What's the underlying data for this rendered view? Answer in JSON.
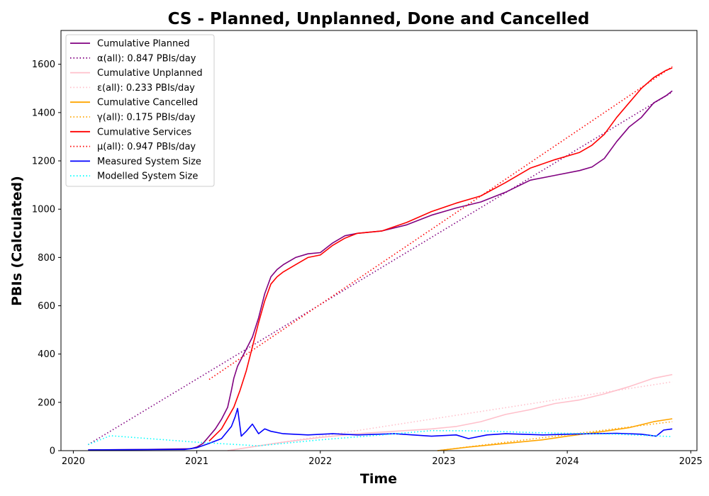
{
  "chart_data": {
    "type": "line",
    "title": "CS - Planned, Unplanned, Done  and Cancelled",
    "xlabel": "Time",
    "ylabel": "PBIs (Calculated)",
    "xlim": [
      2019.9,
      2025.05
    ],
    "ylim": [
      0,
      1740
    ],
    "x_ticks": [
      2020,
      2021,
      2022,
      2023,
      2024,
      2025
    ],
    "x_tick_labels": [
      "2020",
      "2021",
      "2022",
      "2023",
      "2024",
      "2025"
    ],
    "y_ticks": [
      0,
      200,
      400,
      600,
      800,
      1000,
      1200,
      1400,
      1600
    ],
    "y_tick_labels": [
      "0",
      "200",
      "400",
      "600",
      "800",
      "1000",
      "1200",
      "1400",
      "1600"
    ],
    "grid": false,
    "legend_position": "top-left",
    "series": [
      {
        "name": "Cumulative Planned",
        "color": "#800080",
        "style": "solid",
        "x": [
          2020.12,
          2020.6,
          2020.95,
          2021.0,
          2021.05,
          2021.1,
          2021.15,
          2021.2,
          2021.25,
          2021.28,
          2021.3,
          2021.33,
          2021.36,
          2021.4,
          2021.45,
          2021.5,
          2021.55,
          2021.6,
          2021.65,
          2021.7,
          2021.8,
          2021.9,
          2022.0,
          2022.1,
          2022.2,
          2022.3,
          2022.5,
          2022.7,
          2022.9,
          2023.1,
          2023.3,
          2023.5,
          2023.7,
          2023.9,
          2024.1,
          2024.2,
          2024.3,
          2024.4,
          2024.5,
          2024.6,
          2024.7,
          2024.8,
          2024.85
        ],
        "values": [
          3,
          5,
          8,
          15,
          30,
          60,
          90,
          130,
          180,
          250,
          300,
          350,
          380,
          420,
          470,
          550,
          650,
          720,
          750,
          770,
          800,
          815,
          820,
          860,
          890,
          900,
          910,
          935,
          975,
          1005,
          1030,
          1070,
          1120,
          1140,
          1160,
          1175,
          1210,
          1280,
          1340,
          1380,
          1440,
          1470,
          1490
        ]
      },
      {
        "name": "α(all): 0.847 PBIs/day",
        "color": "#800080",
        "style": "dotted",
        "x": [
          2020.12,
          2024.85
        ],
        "values": [
          25,
          1485
        ]
      },
      {
        "name": "Cumulative Unplanned",
        "color": "#ffc0cb",
        "style": "solid",
        "x": [
          2021.25,
          2021.5,
          2021.7,
          2022.0,
          2022.3,
          2022.6,
          2022.9,
          2023.1,
          2023.3,
          2023.5,
          2023.7,
          2023.9,
          2024.1,
          2024.3,
          2024.5,
          2024.7,
          2024.85
        ],
        "values": [
          0,
          20,
          35,
          55,
          70,
          80,
          90,
          100,
          120,
          150,
          170,
          195,
          210,
          235,
          265,
          300,
          315
        ]
      },
      {
        "name": "ε(all): 0.233 PBIs/day",
        "color": "#ffc0cb",
        "style": "dotted",
        "x": [
          2021.25,
          2024.85
        ],
        "values": [
          0,
          285
        ]
      },
      {
        "name": "Cumulative Cancelled",
        "color": "#ffa500",
        "style": "solid",
        "x": [
          2022.95,
          2023.2,
          2023.5,
          2023.8,
          2024.0,
          2024.3,
          2024.5,
          2024.7,
          2024.85
        ],
        "values": [
          0,
          15,
          30,
          45,
          60,
          80,
          95,
          120,
          132
        ]
      },
      {
        "name": "γ(all): 0.175 PBIs/day",
        "color": "#ffa500",
        "style": "dotted",
        "x": [
          2022.95,
          2024.85
        ],
        "values": [
          0,
          120
        ]
      },
      {
        "name": "Cumulative Services",
        "color": "#ff0000",
        "style": "solid",
        "x": [
          2021.1,
          2021.2,
          2021.3,
          2021.35,
          2021.4,
          2021.45,
          2021.5,
          2021.55,
          2021.6,
          2021.65,
          2021.7,
          2021.8,
          2021.9,
          2022.0,
          2022.1,
          2022.2,
          2022.3,
          2022.5,
          2022.7,
          2022.9,
          2023.1,
          2023.3,
          2023.5,
          2023.7,
          2023.9,
          2024.1,
          2024.2,
          2024.3,
          2024.4,
          2024.5,
          2024.6,
          2024.7,
          2024.8,
          2024.85
        ],
        "values": [
          40,
          90,
          180,
          250,
          330,
          430,
          530,
          620,
          690,
          720,
          740,
          770,
          800,
          810,
          850,
          880,
          900,
          910,
          945,
          990,
          1025,
          1055,
          1110,
          1170,
          1205,
          1235,
          1265,
          1310,
          1380,
          1440,
          1500,
          1545,
          1575,
          1585
        ]
      },
      {
        "name": "μ(all): 0.947 PBIs/day",
        "color": "#ff0000",
        "style": "dotted",
        "x": [
          2021.1,
          2024.85
        ],
        "values": [
          295,
          1590
        ]
      },
      {
        "name": "Measured System Size",
        "color": "#0000ff",
        "style": "solid",
        "x": [
          2020.12,
          2020.9,
          2021.0,
          2021.1,
          2021.2,
          2021.28,
          2021.31,
          2021.33,
          2021.36,
          2021.4,
          2021.45,
          2021.5,
          2021.55,
          2021.6,
          2021.7,
          2021.9,
          2022.1,
          2022.3,
          2022.6,
          2022.9,
          2023.1,
          2023.2,
          2023.35,
          2023.5,
          2023.8,
          2024.0,
          2024.2,
          2024.4,
          2024.6,
          2024.72,
          2024.78,
          2024.85
        ],
        "values": [
          3,
          5,
          12,
          30,
          50,
          100,
          140,
          175,
          60,
          80,
          110,
          70,
          90,
          80,
          70,
          65,
          70,
          65,
          70,
          60,
          65,
          50,
          65,
          70,
          65,
          68,
          70,
          72,
          68,
          60,
          85,
          90
        ]
      },
      {
        "name": "Modelled System Size",
        "color": "#00ffff",
        "style": "dotted",
        "x": [
          2020.12,
          2020.3,
          2021.0,
          2021.5,
          2022.0,
          2022.5,
          2022.9,
          2023.3,
          2023.7,
          2024.0,
          2024.4,
          2024.85
        ],
        "values": [
          25,
          62,
          35,
          20,
          45,
          65,
          83,
          82,
          75,
          72,
          68,
          58
        ]
      }
    ]
  }
}
